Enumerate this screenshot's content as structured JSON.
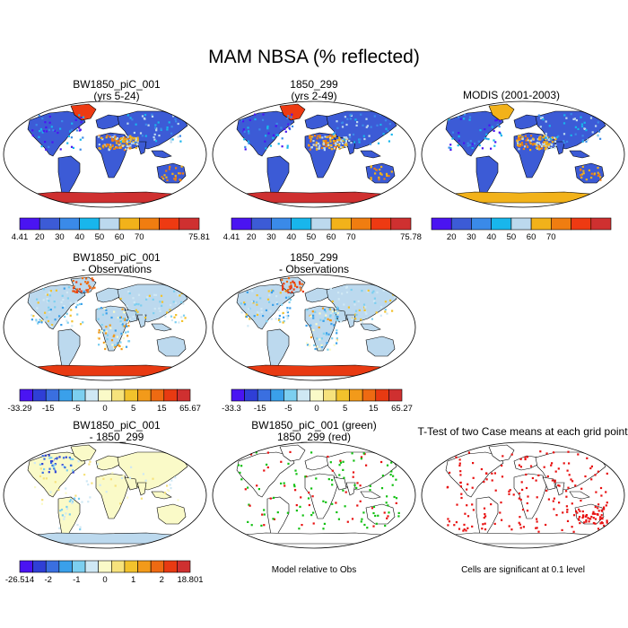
{
  "title": "MAM NBSA (% reflected)",
  "panels": [
    {
      "id": "p1",
      "title": "BW1850_piC_001\n(yrs 5-24)",
      "kind": "field-abs"
    },
    {
      "id": "p2",
      "title": "1850_299\n(yrs 2-49)",
      "kind": "field-abs"
    },
    {
      "id": "p3",
      "title": "MODIS (2001-2003)",
      "kind": "field-obs"
    },
    {
      "id": "p4",
      "title": "BW1850_piC_001\n- Observations",
      "kind": "field-diff"
    },
    {
      "id": "p5",
      "title": "1850_299\n- Observations",
      "kind": "field-diff"
    },
    {
      "id": "p7",
      "title": "BW1850_piC_001\n- 1850_299",
      "kind": "field-modeldiff"
    },
    {
      "id": "p8",
      "title": "BW1850_piC_001 (green)\n1850_299 (red)",
      "kind": "points-rel"
    },
    {
      "id": "p9",
      "title": "T-Test of two Case means at each grid point",
      "kind": "points-sig"
    }
  ],
  "colorbars": {
    "cb1": {
      "colors": [
        "#4a14f2",
        "#3c5bd6",
        "#3a8ae8",
        "#18b6ec",
        "#bcd9ee",
        "#f2b21a",
        "#f07d10",
        "#ee3a12",
        "#cf3030"
      ],
      "labels": [
        "4.41",
        "20",
        "30",
        "40",
        "50",
        "60",
        "70",
        "75.81"
      ],
      "label_style": "ends"
    },
    "cb2": {
      "colors": [
        "#4a14f2",
        "#3c5bd6",
        "#3a8ae8",
        "#18b6ec",
        "#bcd9ee",
        "#f2b21a",
        "#f07d10",
        "#ee3a12",
        "#cf3030"
      ],
      "labels": [
        "4.41",
        "20",
        "30",
        "40",
        "50",
        "60",
        "70",
        "75.78"
      ],
      "label_style": "ends"
    },
    "cb3": {
      "colors": [
        "#4a14f2",
        "#3c5bd6",
        "#3a8ae8",
        "#18b6ec",
        "#bcd9ee",
        "#f2b21a",
        "#f07d10",
        "#ee3a12",
        "#cf3030"
      ],
      "labels": [
        "20",
        "30",
        "40",
        "50",
        "60",
        "70"
      ],
      "label_style": "inner"
    },
    "cb4": {
      "colors": [
        "#4a14f2",
        "#2f3fd6",
        "#3a6fe0",
        "#3aa0ea",
        "#7ccff0",
        "#cfe8f4",
        "#fafac8",
        "#f6e27c",
        "#f2c22c",
        "#f29a1a",
        "#ee6a12",
        "#e83a12",
        "#cf3030"
      ],
      "labels": [
        "-33.29",
        "-15",
        "-5",
        "0",
        "5",
        "15",
        "65.67"
      ],
      "label_style": "ends"
    },
    "cb5": {
      "colors": [
        "#4a14f2",
        "#2f3fd6",
        "#3a6fe0",
        "#3aa0ea",
        "#7ccff0",
        "#cfe8f4",
        "#fafac8",
        "#f6e27c",
        "#f2c22c",
        "#f29a1a",
        "#ee6a12",
        "#e83a12",
        "#cf3030"
      ],
      "labels": [
        "-33.3",
        "-15",
        "-5",
        "0",
        "5",
        "15",
        "65.27"
      ],
      "label_style": "ends"
    },
    "cb7": {
      "colors": [
        "#4a14f2",
        "#2f3fd6",
        "#3a6fe0",
        "#3aa0ea",
        "#7ccff0",
        "#cfe8f4",
        "#fafac8",
        "#f6e27c",
        "#f2c22c",
        "#f29a1a",
        "#ee6a12",
        "#e83a12",
        "#cf3030"
      ],
      "labels": [
        "-26.514",
        "-2",
        "-1",
        "0",
        "1",
        "2",
        "18.801"
      ],
      "label_style": "ends"
    }
  },
  "notes": {
    "p8_note": "Model relative to Obs",
    "p9_note": "Cells are significant at 0.1 level"
  },
  "colors": {
    "greenland_abs": "#ee3a12",
    "antarctica_abs": "#cf3030",
    "antarctica_obs": "#f2b21a",
    "sahara_abs": "#f2b21a",
    "land_abs": "#3c5bd6",
    "land_diff": "#bcd9ee",
    "land_modeldiff": "#fafac8",
    "sig_red": "#e81010",
    "rel_green": "#12c012",
    "rel_red": "#e81010"
  }
}
